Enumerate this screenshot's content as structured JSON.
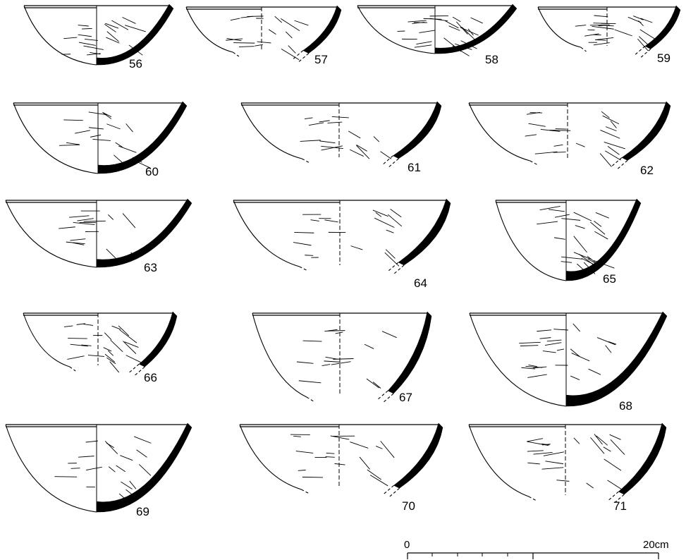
{
  "plate": {
    "vessels": [
      {
        "label": "56"
      },
      {
        "label": "57"
      },
      {
        "label": "58"
      },
      {
        "label": "59"
      },
      {
        "label": "60"
      },
      {
        "label": "61"
      },
      {
        "label": "62"
      },
      {
        "label": "63"
      },
      {
        "label": "64"
      },
      {
        "label": "65"
      },
      {
        "label": "66"
      },
      {
        "label": "67"
      },
      {
        "label": "68"
      },
      {
        "label": "69"
      },
      {
        "label": "70"
      },
      {
        "label": "71"
      }
    ],
    "scale_bar": {
      "start_label": "0",
      "end_label": "20cm"
    }
  }
}
